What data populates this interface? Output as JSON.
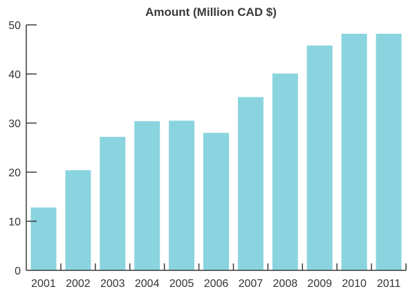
{
  "chart_data": {
    "type": "bar",
    "title": "Amount (Million CAD $)",
    "xlabel": "",
    "ylabel": "",
    "categories": [
      "2001",
      "2002",
      "2003",
      "2004",
      "2005",
      "2006",
      "2007",
      "2008",
      "2009",
      "2010",
      "2011"
    ],
    "values": [
      12.8,
      20.4,
      27.2,
      30.4,
      30.5,
      28.0,
      35.3,
      40.1,
      45.8,
      48.2,
      48.2
    ],
    "ylim": [
      0,
      50
    ],
    "yticks": [
      "0",
      "10",
      "20",
      "30",
      "40",
      "50"
    ],
    "grid": false,
    "legend": "none",
    "bar_color": "#8ad4df",
    "axis_color": "#3a3a3a"
  }
}
